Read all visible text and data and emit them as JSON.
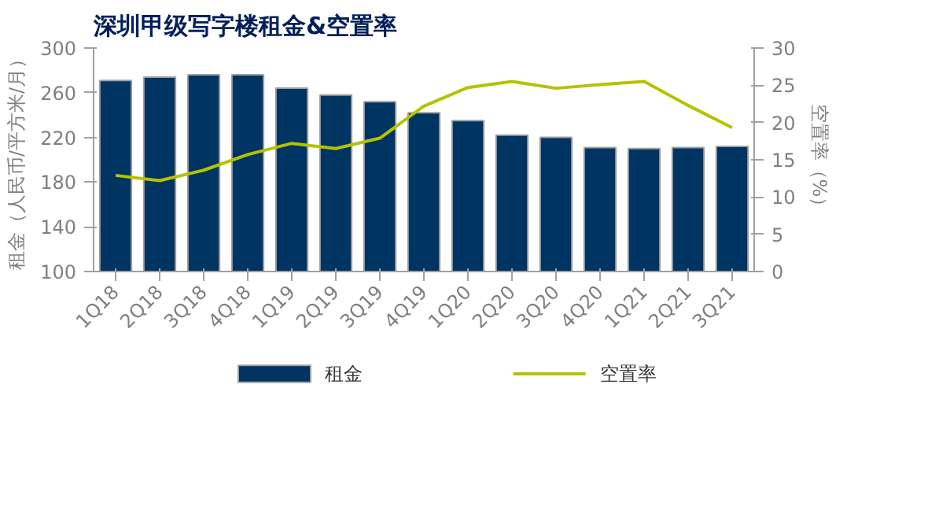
{
  "chart_data": {
    "type": "bar",
    "title": "深圳甲级写字楼租金&空置率",
    "categories": [
      "1Q18",
      "2Q18",
      "3Q18",
      "4Q18",
      "1Q19",
      "2Q19",
      "3Q19",
      "4Q19",
      "1Q20",
      "2Q20",
      "3Q20",
      "4Q20",
      "1Q21",
      "2Q21",
      "3Q21"
    ],
    "series": [
      {
        "name": "租金",
        "color": "#003462",
        "values": [
          271,
          274,
          276,
          276,
          264,
          258,
          252,
          242,
          235,
          222,
          220,
          211,
          210,
          211,
          212
        ]
      },
      {
        "name": "空置率",
        "type": "line",
        "axis": "y2",
        "color": "#b5c200",
        "values": [
          12.9,
          12.2,
          13.6,
          15.7,
          17.2,
          16.5,
          17.9,
          22.2,
          24.7,
          25.5,
          24.6,
          25.1,
          25.5,
          22.3,
          19.3
        ]
      }
    ],
    "ylabel": "租金（人民币/平方米/月）",
    "y2label": "空置率（%）",
    "ylim": [
      100,
      300
    ],
    "yticks": [
      100,
      140,
      180,
      220,
      260,
      300
    ],
    "y2lim": [
      0,
      30
    ],
    "y2ticks": [
      0,
      5,
      10,
      15,
      20,
      25,
      30
    ],
    "legend": "bottom",
    "grid": false
  }
}
